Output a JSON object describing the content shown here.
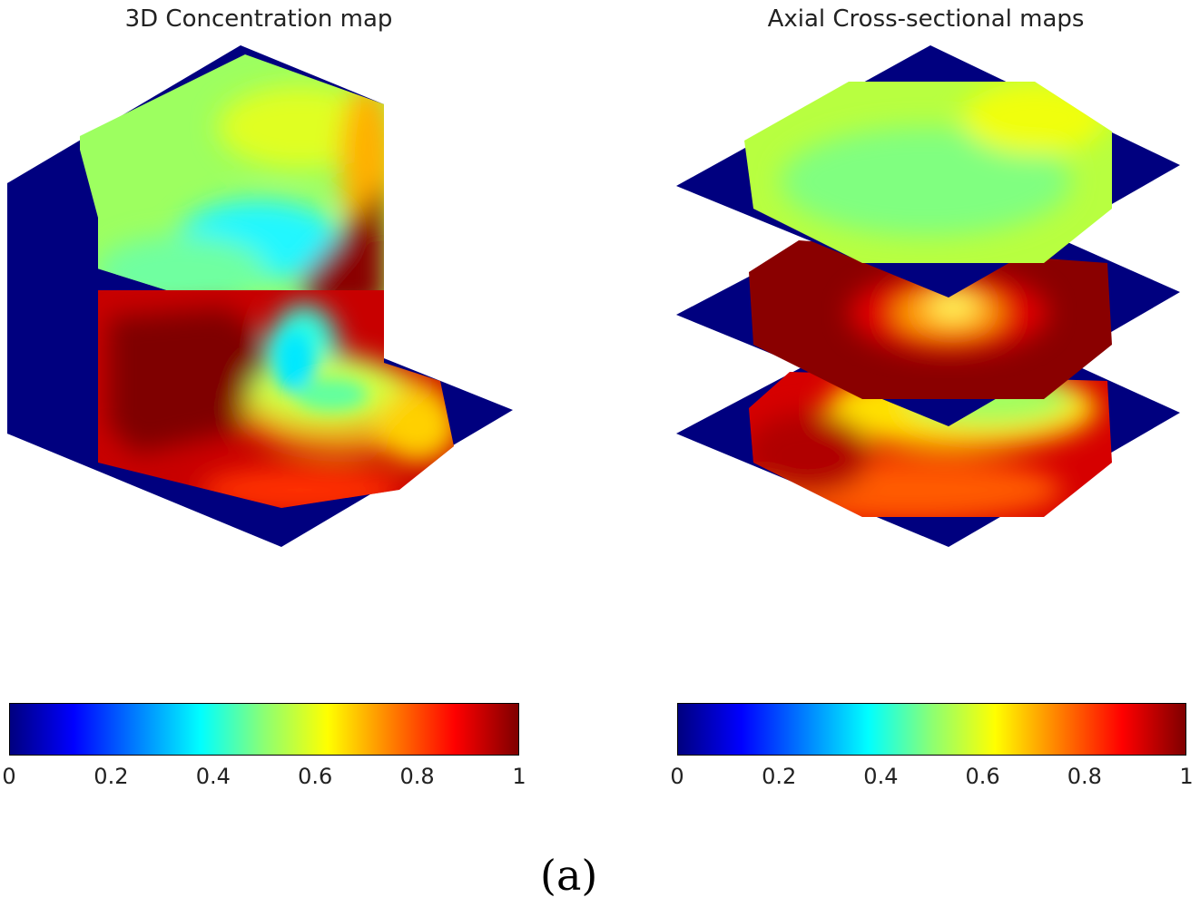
{
  "chart_data": [
    {
      "type": "heatmap",
      "title": "3D Concentration map",
      "colormap": "jet",
      "colorbar": {
        "min": 0,
        "max": 1,
        "ticks": [
          "0",
          "0.2",
          "0.4",
          "0.6",
          "0.8",
          "1"
        ]
      }
    },
    {
      "type": "heatmap",
      "title": "Axial Cross-sectional maps",
      "colormap": "jet",
      "colorbar": {
        "min": 0,
        "max": 1,
        "ticks": [
          "0",
          "0.2",
          "0.4",
          "0.6",
          "0.8",
          "1"
        ]
      }
    }
  ],
  "caption": "(a)",
  "colors": {
    "dark_blue": "#00007f",
    "cyan": "#00ffff",
    "green_yellow": "#8cff73",
    "yellow": "#ffff00",
    "red": "#ff0000",
    "dark_red": "#7f0000"
  }
}
